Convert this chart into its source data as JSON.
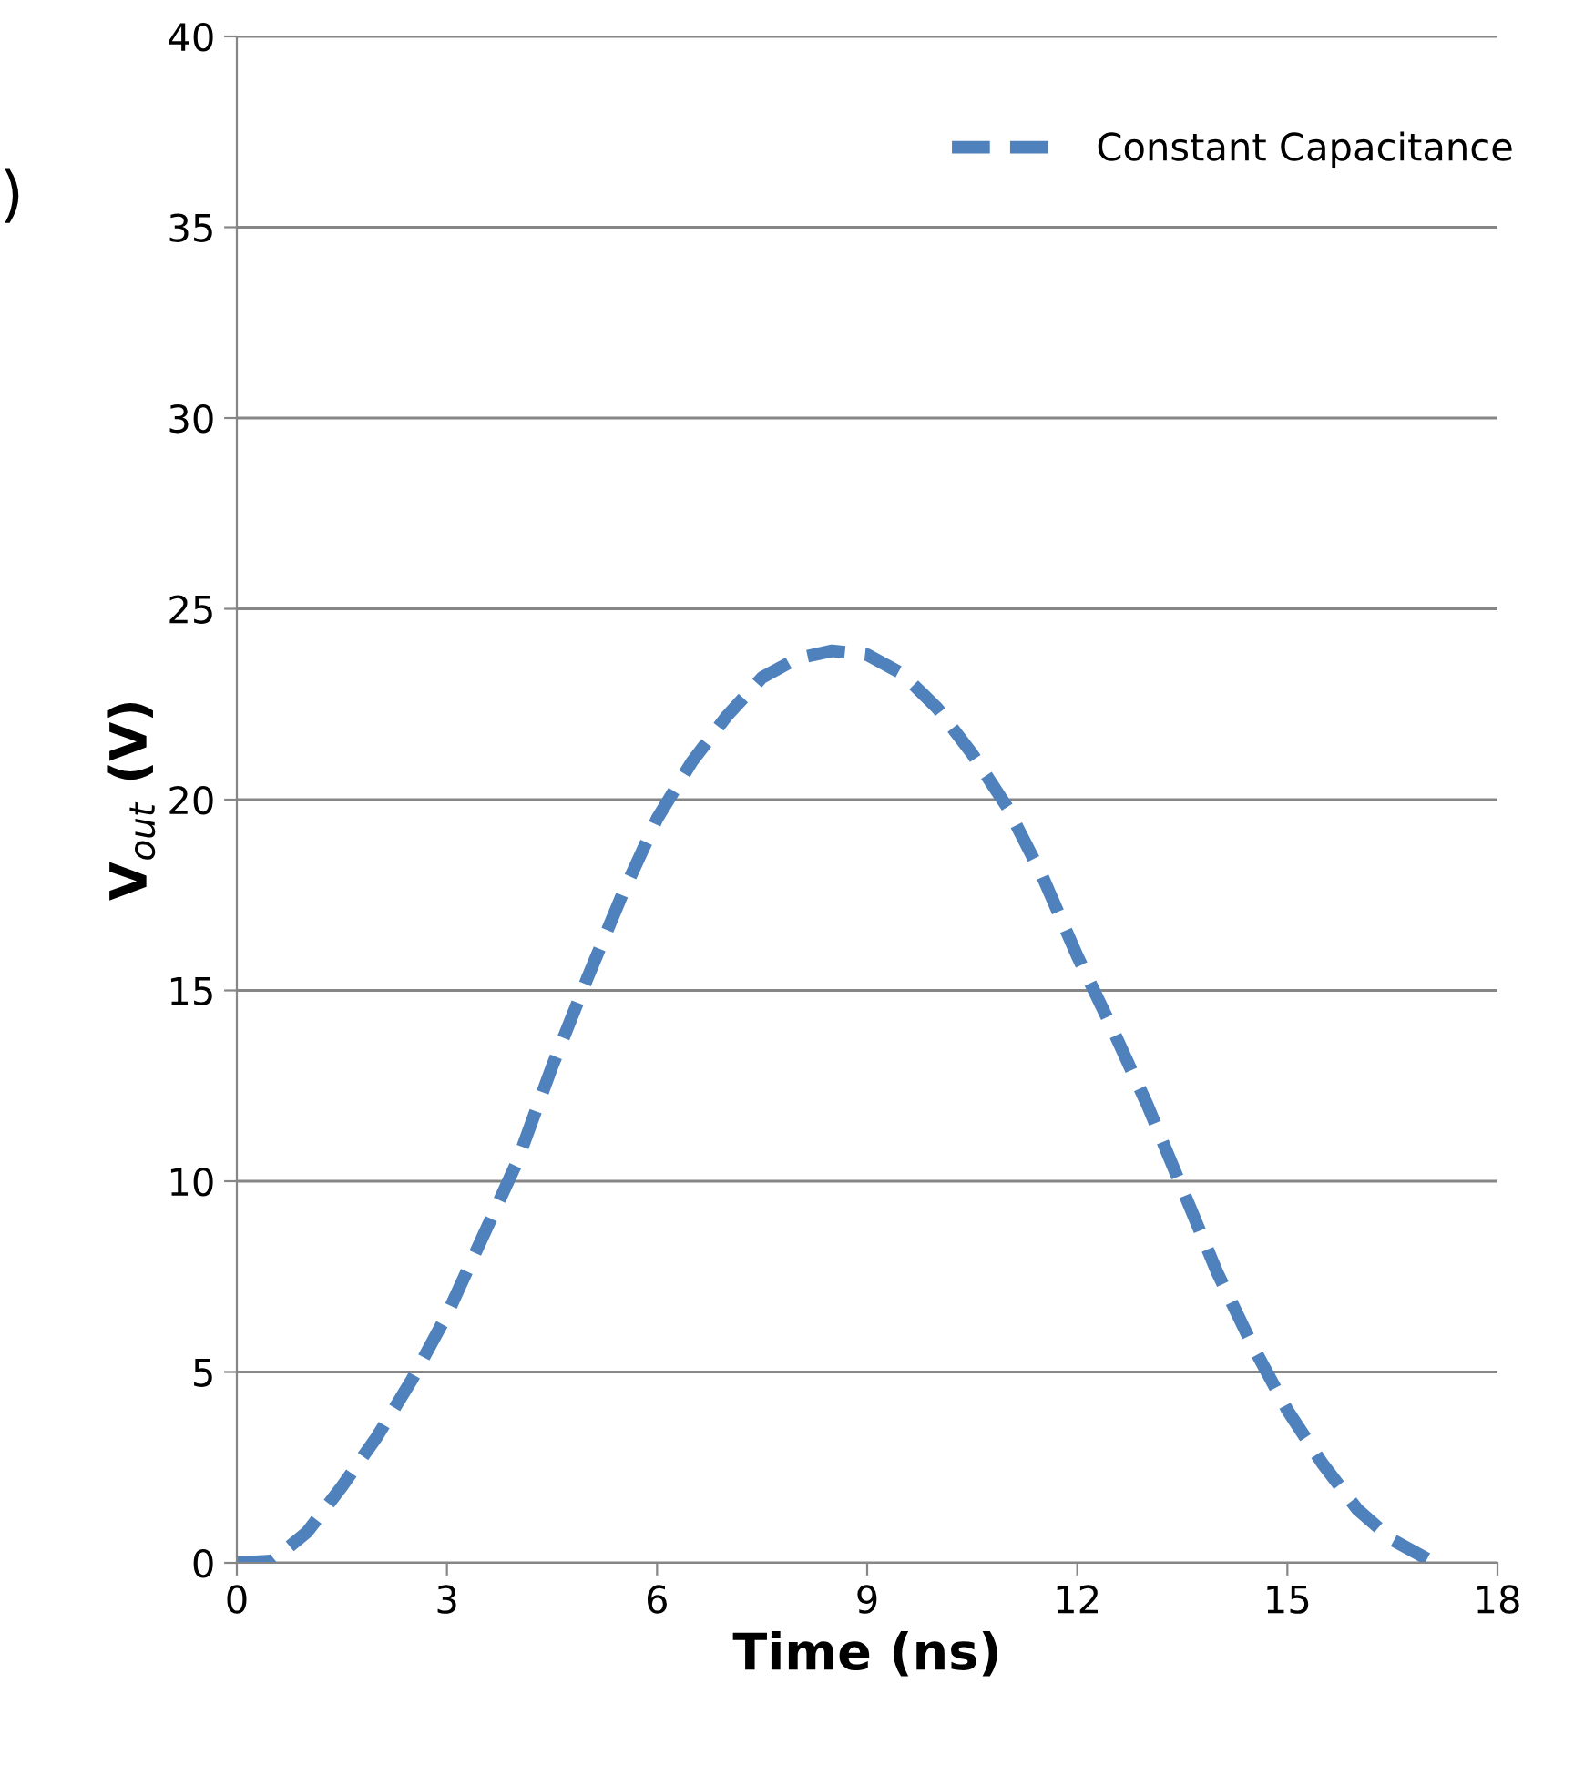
{
  "chart_data": {
    "type": "line",
    "xlabel": "Time (ns)",
    "ylabel": "V$_{out}$ (V)",
    "xlim": [
      0,
      18
    ],
    "xticks": [
      0,
      3,
      6,
      9,
      12,
      15,
      18
    ],
    "ylim": [
      0,
      40
    ],
    "yticks": [
      0,
      5,
      10,
      15,
      20,
      25,
      30,
      35,
      40
    ],
    "grid": "y",
    "legend": "top right",
    "line_style": "dashed",
    "marker": "none",
    "annotations": [
      ")"
    ],
    "series": [
      {
        "name": "Constant Capacitance",
        "color": "#4f81bd",
        "x": [
          0,
          0.5,
          1,
          1.5,
          2,
          2.5,
          3,
          3.5,
          4,
          4.5,
          5,
          5.5,
          6,
          6.5,
          7,
          7.5,
          8,
          8.5,
          9,
          9.5,
          10,
          10.5,
          11,
          11.5,
          12,
          12.5,
          13,
          13.5,
          14,
          14.5,
          15,
          15.5,
          16,
          16.5,
          17
        ],
        "values": [
          0,
          0.05,
          0.8,
          2,
          3.3,
          4.8,
          6.5,
          8.5,
          10.5,
          13,
          15.3,
          17.5,
          19.5,
          21,
          22.2,
          23.2,
          23.7,
          23.9,
          23.8,
          23.3,
          22.4,
          21.2,
          19.8,
          18,
          15.9,
          14,
          12,
          9.8,
          7.6,
          5.7,
          4,
          2.6,
          1.4,
          0.6,
          0.1
        ]
      }
    ]
  }
}
